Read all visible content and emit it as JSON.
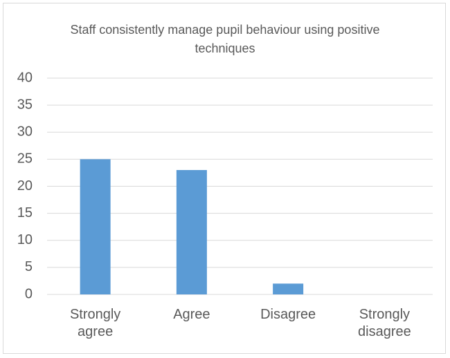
{
  "chart_data": {
    "type": "bar",
    "title": "Staff consistently manage pupil behaviour using positive techniques",
    "categories": [
      "Strongly agree",
      "Agree",
      "Disagree",
      "Strongly disagree"
    ],
    "values": [
      25,
      23,
      2,
      0
    ],
    "color": "#5b9bd5",
    "ylim": [
      0,
      40
    ],
    "yticks": [
      0,
      5,
      10,
      15,
      20,
      25,
      30,
      35,
      40
    ],
    "grid": true
  }
}
